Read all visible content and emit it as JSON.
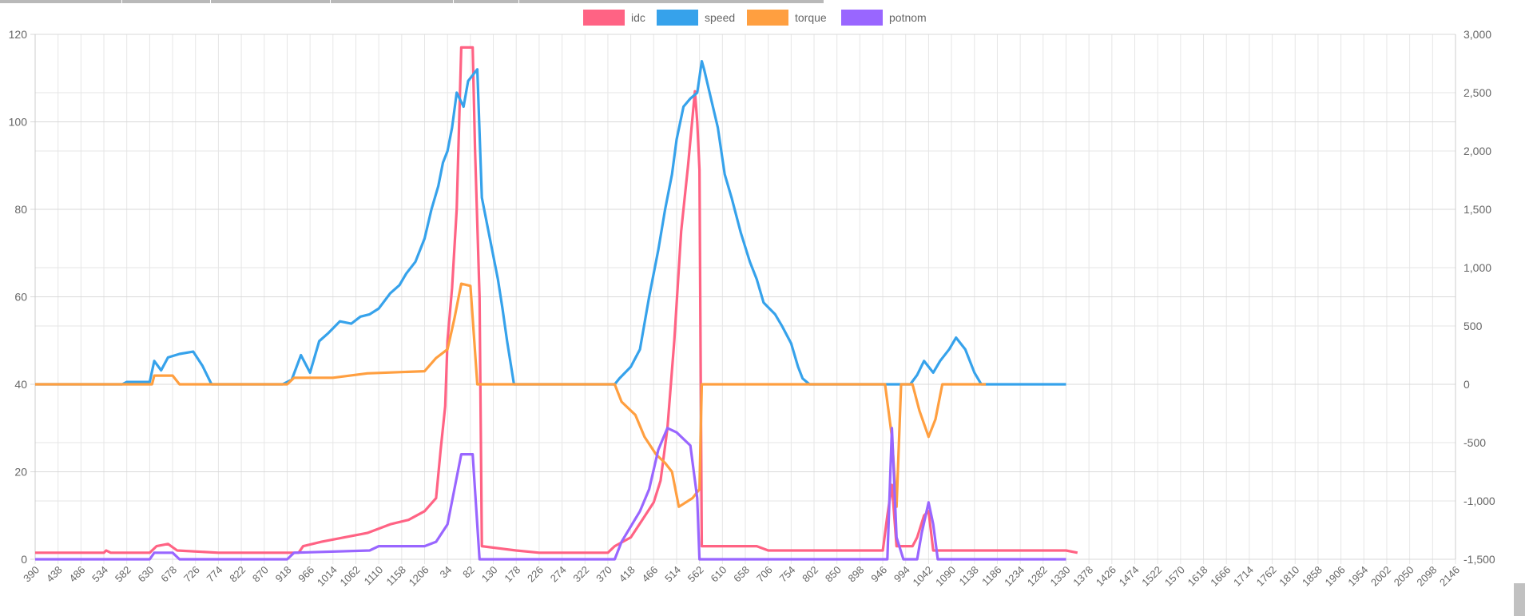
{
  "chart_data": {
    "type": "line",
    "legend_position": "top",
    "grid": true,
    "series": [
      {
        "name": "idc",
        "color": "#ff6384",
        "axis": "left"
      },
      {
        "name": "speed",
        "color": "#36a2eb",
        "axis": "right"
      },
      {
        "name": "torque",
        "color": "#ff9f40",
        "axis": "left"
      },
      {
        "name": "potnom",
        "color": "#9966ff",
        "axis": "left"
      }
    ],
    "y_left": {
      "min": 0,
      "max": 120,
      "ticks": [
        "0",
        "20",
        "40",
        "60",
        "80",
        "100",
        "120"
      ]
    },
    "y_right": {
      "min": -1500,
      "max": 3000,
      "ticks": [
        "-1,500",
        "-1,000",
        "-500",
        "0",
        "500",
        "1,000",
        "1,500",
        "2,000",
        "2,500",
        "3,000"
      ]
    },
    "x_tick_labels": [
      "390",
      "438",
      "486",
      "534",
      "582",
      "630",
      "678",
      "726",
      "774",
      "822",
      "870",
      "918",
      "966",
      "1014",
      "1062",
      "1110",
      "1158",
      "1206",
      "34",
      "82",
      "130",
      "178",
      "226",
      "274",
      "322",
      "370",
      "418",
      "466",
      "514",
      "562",
      "610",
      "658",
      "706",
      "754",
      "802",
      "850",
      "898",
      "946",
      "994",
      "1042",
      "1090",
      "1138",
      "1186",
      "1234",
      "1282",
      "1330",
      "1378",
      "1426",
      "1474",
      "1522",
      "1570",
      "1618",
      "1666",
      "1714",
      "1762",
      "1810",
      "1858",
      "1906",
      "1954",
      "2002",
      "2050",
      "2098",
      "2146"
    ],
    "data_length": 62,
    "lines": {
      "idc": [
        [
          0,
          1.5
        ],
        [
          3,
          1.5
        ],
        [
          3.1,
          2
        ],
        [
          3.3,
          1.5
        ],
        [
          5,
          1.5
        ],
        [
          5.3,
          3
        ],
        [
          5.8,
          3.5
        ],
        [
          6.2,
          2
        ],
        [
          8,
          1.5
        ],
        [
          11.5,
          1.5
        ],
        [
          11.7,
          3
        ],
        [
          12.5,
          4
        ],
        [
          13.5,
          5
        ],
        [
          14.5,
          6
        ],
        [
          15.5,
          8
        ],
        [
          16.3,
          9
        ],
        [
          17,
          11
        ],
        [
          17.5,
          14
        ],
        [
          17.7,
          25
        ],
        [
          17.9,
          35
        ],
        [
          18,
          50
        ],
        [
          18.2,
          62
        ],
        [
          18.4,
          80
        ],
        [
          18.6,
          117
        ],
        [
          19.1,
          117
        ],
        [
          19.2,
          94
        ],
        [
          19.4,
          60
        ],
        [
          19.5,
          3
        ],
        [
          21,
          2
        ],
        [
          22,
          1.5
        ],
        [
          25,
          1.5
        ],
        [
          25.3,
          3
        ],
        [
          26,
          5
        ],
        [
          26.5,
          9
        ],
        [
          27,
          13
        ],
        [
          27.3,
          18
        ],
        [
          27.6,
          30
        ],
        [
          27.9,
          50
        ],
        [
          28.2,
          75
        ],
        [
          28.5,
          90
        ],
        [
          28.8,
          107
        ],
        [
          28.9,
          100
        ],
        [
          29,
          89
        ],
        [
          29.1,
          3
        ],
        [
          31.5,
          3
        ],
        [
          32,
          2
        ],
        [
          33,
          2
        ],
        [
          37,
          2
        ],
        [
          37.2,
          10
        ],
        [
          37.4,
          17
        ],
        [
          37.6,
          3
        ],
        [
          38.3,
          3
        ],
        [
          38.5,
          5
        ],
        [
          38.8,
          10
        ],
        [
          39,
          11
        ],
        [
          39.2,
          2
        ],
        [
          45,
          2
        ],
        [
          45.5,
          1.5
        ]
      ],
      "speed": [
        [
          0,
          0
        ],
        [
          3.8,
          0
        ],
        [
          4,
          20
        ],
        [
          5,
          20
        ],
        [
          5.2,
          200
        ],
        [
          5.5,
          120
        ],
        [
          5.8,
          230
        ],
        [
          6.3,
          260
        ],
        [
          6.9,
          280
        ],
        [
          7.3,
          160
        ],
        [
          7.7,
          0
        ],
        [
          10.8,
          0
        ],
        [
          11.2,
          40
        ],
        [
          11.6,
          250
        ],
        [
          12,
          100
        ],
        [
          12.4,
          370
        ],
        [
          12.8,
          440
        ],
        [
          13.3,
          540
        ],
        [
          13.8,
          520
        ],
        [
          14.2,
          580
        ],
        [
          14.6,
          600
        ],
        [
          15,
          650
        ],
        [
          15.5,
          780
        ],
        [
          15.9,
          850
        ],
        [
          16.2,
          950
        ],
        [
          16.6,
          1050
        ],
        [
          17,
          1250
        ],
        [
          17.3,
          1500
        ],
        [
          17.6,
          1700
        ],
        [
          17.8,
          1900
        ],
        [
          18,
          2000
        ],
        [
          18.2,
          2200
        ],
        [
          18.4,
          2500
        ],
        [
          18.7,
          2380
        ],
        [
          18.9,
          2600
        ],
        [
          19.3,
          2700
        ],
        [
          19.5,
          1600
        ],
        [
          19.8,
          1300
        ],
        [
          20.2,
          900
        ],
        [
          20.4,
          650
        ],
        [
          20.6,
          370
        ],
        [
          20.9,
          0
        ],
        [
          25.3,
          0
        ],
        [
          25.5,
          50
        ],
        [
          26,
          150
        ],
        [
          26.4,
          300
        ],
        [
          26.8,
          750
        ],
        [
          27.2,
          1150
        ],
        [
          27.5,
          1500
        ],
        [
          27.8,
          1800
        ],
        [
          28,
          2100
        ],
        [
          28.3,
          2380
        ],
        [
          28.6,
          2450
        ],
        [
          28.9,
          2500
        ],
        [
          29.1,
          2770
        ],
        [
          29.2,
          2700
        ],
        [
          29.5,
          2450
        ],
        [
          29.8,
          2200
        ],
        [
          30.1,
          1800
        ],
        [
          30.4,
          1600
        ],
        [
          30.8,
          1300
        ],
        [
          31.2,
          1050
        ],
        [
          31.5,
          900
        ],
        [
          31.8,
          700
        ],
        [
          32.3,
          600
        ],
        [
          32.6,
          500
        ],
        [
          33,
          350
        ],
        [
          33.3,
          150
        ],
        [
          33.5,
          50
        ],
        [
          33.8,
          0
        ],
        [
          38.2,
          0
        ],
        [
          38.5,
          80
        ],
        [
          38.8,
          200
        ],
        [
          39.2,
          100
        ],
        [
          39.5,
          200
        ],
        [
          39.9,
          300
        ],
        [
          40.2,
          400
        ],
        [
          40.6,
          300
        ],
        [
          41,
          100
        ],
        [
          41.3,
          0
        ],
        [
          45,
          0
        ]
      ],
      "torque": [
        [
          0,
          40
        ],
        [
          5.1,
          40
        ],
        [
          5.2,
          42
        ],
        [
          6,
          42
        ],
        [
          6.3,
          40
        ],
        [
          11,
          40
        ],
        [
          11.3,
          41.5
        ],
        [
          13,
          41.5
        ],
        [
          14.5,
          42.5
        ],
        [
          17,
          43
        ],
        [
          17.5,
          46
        ],
        [
          18,
          48
        ],
        [
          18.3,
          55
        ],
        [
          18.6,
          63
        ],
        [
          19,
          62.5
        ],
        [
          19.3,
          40
        ],
        [
          25.3,
          40
        ],
        [
          25.6,
          36
        ],
        [
          26.2,
          33
        ],
        [
          26.6,
          28
        ],
        [
          27.1,
          24
        ],
        [
          27.5,
          22
        ],
        [
          27.8,
          20
        ],
        [
          28.1,
          12
        ],
        [
          28.7,
          14
        ],
        [
          29,
          16
        ],
        [
          29.1,
          40
        ],
        [
          37.1,
          40
        ],
        [
          37.4,
          28
        ],
        [
          37.6,
          12
        ],
        [
          37.8,
          40
        ],
        [
          38.3,
          40
        ],
        [
          38.6,
          34
        ],
        [
          39,
          28
        ],
        [
          39.3,
          32
        ],
        [
          39.6,
          40
        ],
        [
          41.5,
          40
        ]
      ],
      "potnom": [
        [
          0,
          0
        ],
        [
          5,
          0
        ],
        [
          5.2,
          1.5
        ],
        [
          6,
          1.5
        ],
        [
          6.3,
          0
        ],
        [
          11,
          0
        ],
        [
          11.3,
          1.5
        ],
        [
          14.6,
          2
        ],
        [
          15,
          3
        ],
        [
          17,
          3
        ],
        [
          17.5,
          4
        ],
        [
          18,
          8
        ],
        [
          18.6,
          24
        ],
        [
          19.1,
          24
        ],
        [
          19.4,
          0
        ],
        [
          25.3,
          0
        ],
        [
          25.6,
          4
        ],
        [
          26.4,
          11
        ],
        [
          26.8,
          16
        ],
        [
          27.2,
          25
        ],
        [
          27.6,
          30
        ],
        [
          28,
          29
        ],
        [
          28.6,
          26
        ],
        [
          28.9,
          14
        ],
        [
          29,
          0
        ],
        [
          37.2,
          0
        ],
        [
          37.4,
          30
        ],
        [
          37.6,
          5
        ],
        [
          37.9,
          0
        ],
        [
          38.5,
          0
        ],
        [
          38.7,
          6
        ],
        [
          39,
          13
        ],
        [
          39.2,
          8
        ],
        [
          39.4,
          0
        ],
        [
          45,
          0
        ]
      ]
    }
  }
}
